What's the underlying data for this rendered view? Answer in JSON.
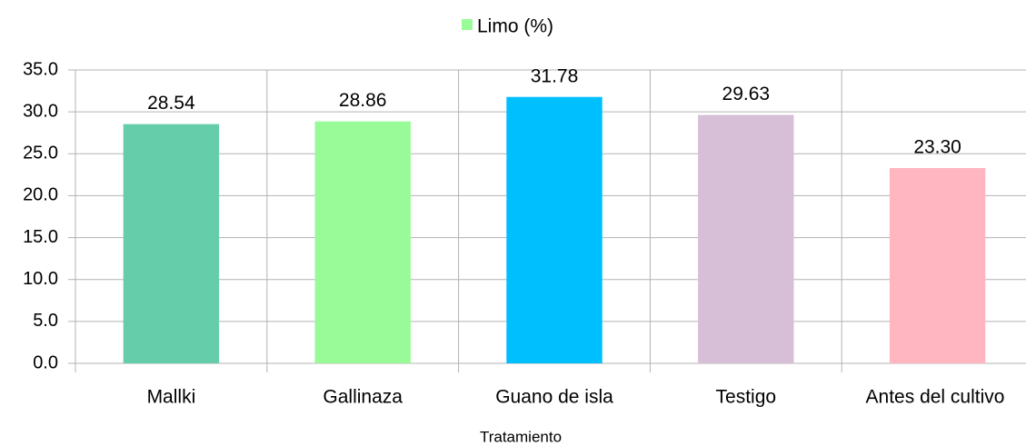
{
  "chart_data": {
    "type": "bar",
    "x_label": "Tratamiento",
    "categories": [
      "Mallki",
      "Gallinaza",
      "Guano de isla",
      "Testigo",
      "Antes del cultivo"
    ],
    "series": [
      {
        "name": "Limo (%)",
        "color": "#98fb98",
        "colors": [
          "#66cdaa",
          "#98fb98",
          "#00bfff",
          "#d8bfd8",
          "#ffb6c1"
        ],
        "values": [
          28.54,
          28.86,
          31.78,
          29.63,
          23.3
        ],
        "value_labels": [
          "28.54",
          "28.86",
          "31.78",
          "29.63",
          "23.30"
        ]
      }
    ],
    "ylim": [
      0,
      35
    ],
    "yticks": [
      {
        "value": 0,
        "label": "0.0"
      },
      {
        "value": 5,
        "label": "5.0"
      },
      {
        "value": 10,
        "label": "10.0"
      },
      {
        "value": 15,
        "label": "15.0"
      },
      {
        "value": 20,
        "label": "20.0"
      },
      {
        "value": 25,
        "label": "25.0"
      },
      {
        "value": 30,
        "label": "30.0"
      },
      {
        "value": 35,
        "label": "35.0"
      }
    ],
    "grid": true,
    "legend": "top"
  }
}
